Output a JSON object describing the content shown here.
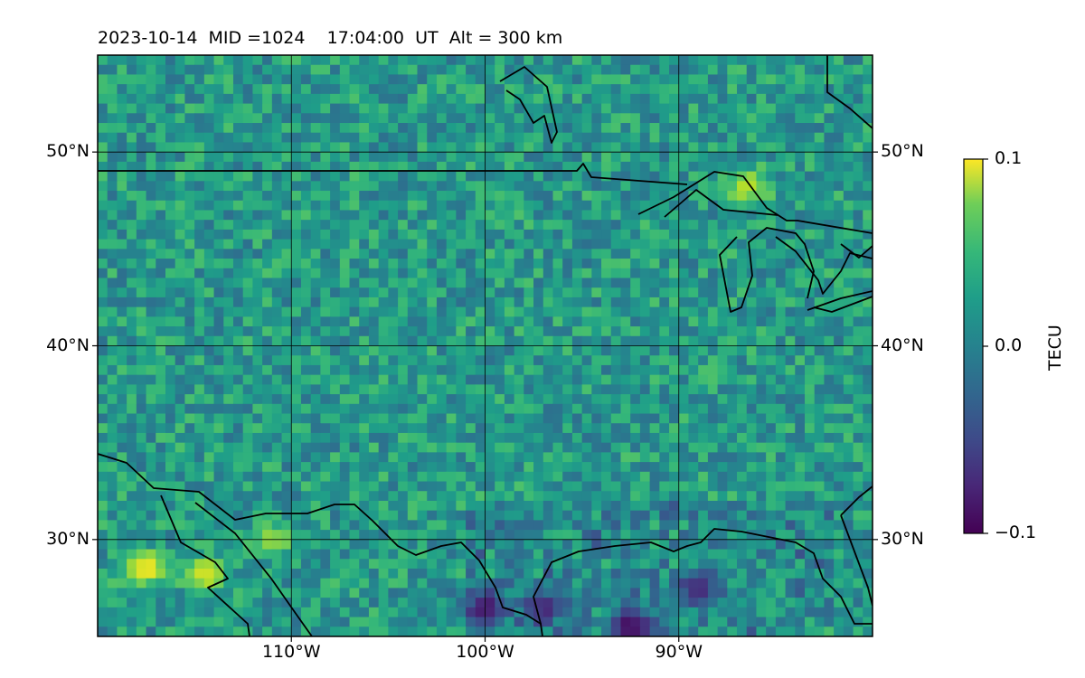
{
  "title": {
    "date": "2023-10-14",
    "mid": "MID =1024",
    "time": "17:04:00",
    "ut": "UT",
    "alt": "Alt = 300 km"
  },
  "map": {
    "lon_range": [
      -120,
      -80
    ],
    "lat_range": [
      25,
      55
    ],
    "lon_ticks": [
      {
        "value": -110,
        "label": "110°W"
      },
      {
        "value": -100,
        "label": "100°W"
      },
      {
        "value": -90,
        "label": "90°W"
      }
    ],
    "lat_ticks": [
      {
        "value": 30,
        "label": "30°N"
      },
      {
        "value": 40,
        "label": "40°N"
      },
      {
        "value": 50,
        "label": "50°N"
      }
    ],
    "grid": true
  },
  "colorbar": {
    "label": "TECU",
    "colormap": "viridis",
    "range": [
      -0.1,
      0.1
    ],
    "ticks": [
      {
        "value": 0.1,
        "label": "0.1"
      },
      {
        "value": 0.0,
        "label": "0.0"
      },
      {
        "value": -0.1,
        "label": "−0.1"
      }
    ]
  },
  "chart_data": {
    "type": "heatmap",
    "x_label": "",
    "y_label": "",
    "x_range": [
      -120,
      -80
    ],
    "y_range": [
      25,
      55
    ],
    "value_range": [
      -0.1,
      0.1
    ],
    "units": "TECU",
    "hotspots": [
      {
        "lon": -117.5,
        "lat": 28.5,
        "value": 0.1
      },
      {
        "lon": -114.5,
        "lat": 28.2,
        "value": 0.09
      },
      {
        "lon": -86.5,
        "lat": 48.2,
        "value": 0.08
      },
      {
        "lon": -111.0,
        "lat": 30.0,
        "value": 0.07
      },
      {
        "lon": -92.5,
        "lat": 25.5,
        "value": -0.1
      },
      {
        "lon": -100.0,
        "lat": 26.5,
        "value": -0.09
      },
      {
        "lon": -97.0,
        "lat": 26.5,
        "value": -0.08
      },
      {
        "lon": -89.0,
        "lat": 27.5,
        "value": -0.08
      }
    ]
  }
}
